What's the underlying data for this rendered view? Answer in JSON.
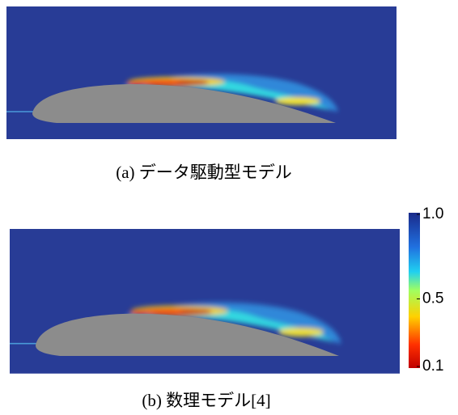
{
  "panels": [
    {
      "caption": "(a)  データ駆動型モデル"
    },
    {
      "caption": "(b)  数理モデル[4]"
    }
  ],
  "colorbar": {
    "ticks": [
      {
        "value": 1.0,
        "label": "1.0"
      },
      {
        "value": 0.5,
        "label": "0.5"
      },
      {
        "value": 0.1,
        "label": "0.1"
      }
    ]
  }
}
